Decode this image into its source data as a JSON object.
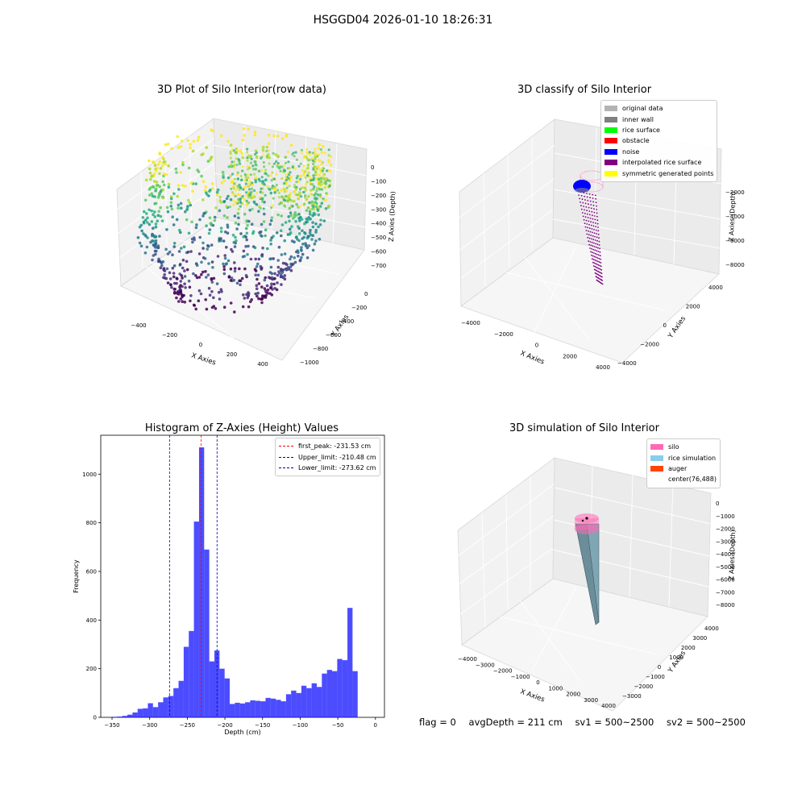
{
  "figure": {
    "suptitle": "HSGGD04 2026-01-10 18:26:31",
    "footer": {
      "flag": "flag = 0",
      "avg_depth": "avgDepth = 211 cm",
      "sv1": "sv1 = 500~2500",
      "sv2": "sv2 = 500~2500"
    }
  },
  "chart_data": [
    {
      "id": "raw",
      "type": "scatter",
      "title": "3D Plot of Silo Interior(row data)",
      "xlabel": "X Axies",
      "ylabel": "Y Axies",
      "zlabel": "Z Axies (Depth)",
      "x_ticks": [
        "−400",
        "−200",
        "0",
        "200",
        "400"
      ],
      "y_ticks": [
        "−1000",
        "−800",
        "−600",
        "−400",
        "−200",
        "0"
      ],
      "z_ticks": [
        "0",
        "−100",
        "−200",
        "−300",
        "−400",
        "−500",
        "−600",
        "−700"
      ],
      "colormap": "viridis",
      "grid": true
    },
    {
      "id": "classify",
      "type": "scatter",
      "title": "3D classify of Silo Interior",
      "xlabel": "X Axies",
      "ylabel": "Y Axies",
      "zlabel": "Z Axies (Depth)",
      "x_ticks": [
        "−4000",
        "−2000",
        "0",
        "2000",
        "4000"
      ],
      "y_ticks": [
        "−4000",
        "−2000",
        "0",
        "2000",
        "4000"
      ],
      "z_ticks": [
        "−2000",
        "−4000",
        "−6000",
        "−8000"
      ],
      "legend_position": "top-right",
      "legend": [
        {
          "label": "original data",
          "color": "#b3b3b3"
        },
        {
          "label": "inner wall",
          "color": "#808080"
        },
        {
          "label": "rice surface",
          "color": "#00ff00"
        },
        {
          "label": "obstacle",
          "color": "#ff0000"
        },
        {
          "label": "noise",
          "color": "#0000ff"
        },
        {
          "label": "interpolated rice surface",
          "color": "#800080"
        },
        {
          "label": "symmetric generated points",
          "color": "#ffff00"
        }
      ],
      "grid": true
    },
    {
      "id": "histogram",
      "type": "bar",
      "title": "Histogram of Z-Axies (Height) Values",
      "xlabel": "Depth (cm)",
      "ylabel": "Frequency",
      "xlim": [
        -365,
        12
      ],
      "ylim": [
        0,
        1160
      ],
      "x_ticks": [
        "−350",
        "−300",
        "−250",
        "−200",
        "−150",
        "−100",
        "−50",
        "0"
      ],
      "y_ticks": [
        "0",
        "200",
        "400",
        "600",
        "800",
        "1000"
      ],
      "bar_color": "#0000ff",
      "bin_start": -350,
      "bin_width": 6.8,
      "values": [
        2,
        3,
        6,
        11,
        20,
        35,
        37,
        58,
        42,
        62,
        82,
        88,
        120,
        150,
        290,
        355,
        805,
        1110,
        690,
        230,
        275,
        200,
        160,
        55,
        60,
        57,
        62,
        70,
        68,
        66,
        80,
        77,
        72,
        66,
        95,
        110,
        100,
        130,
        120,
        140,
        125,
        180,
        195,
        190,
        240,
        235,
        450,
        190
      ],
      "lines": [
        {
          "label": "first_peak: -231.53 cm",
          "x": -231.53,
          "color": "#ff0000"
        },
        {
          "label": "Upper_limit: -210.48 cm",
          "x": -210.48,
          "color": "#0000b0"
        },
        {
          "label": "Lower_limit: -273.62 cm",
          "x": -273.62,
          "color": "#0000b0"
        }
      ],
      "legend_position": "top-right",
      "grid": false
    },
    {
      "id": "simulation",
      "type": "scatter",
      "title": "3D simulation of Silo Interior",
      "xlabel": "X Axies",
      "ylabel": "Y Axies",
      "zlabel": "Z Axies (Depth)",
      "x_ticks": [
        "−4000",
        "−3000",
        "−2000",
        "−1000",
        "0",
        "1000",
        "2000",
        "3000",
        "4000"
      ],
      "y_ticks": [
        "−3000",
        "−2000",
        "−1000",
        "0",
        "1000",
        "2000",
        "3000",
        "4000"
      ],
      "z_ticks": [
        "0",
        "−1000",
        "−2000",
        "−3000",
        "−4000",
        "−5000",
        "−6000",
        "−7000",
        "−8000"
      ],
      "legend_position": "top-right",
      "legend": [
        {
          "label": "silo",
          "color": "#ff69b4"
        },
        {
          "label": "rice simulation",
          "color": "#87ceeb"
        },
        {
          "label": "auger",
          "color": "#ff4500"
        },
        {
          "label": "center(76,488)",
          "color": "#ffffff"
        }
      ],
      "grid": true
    }
  ]
}
